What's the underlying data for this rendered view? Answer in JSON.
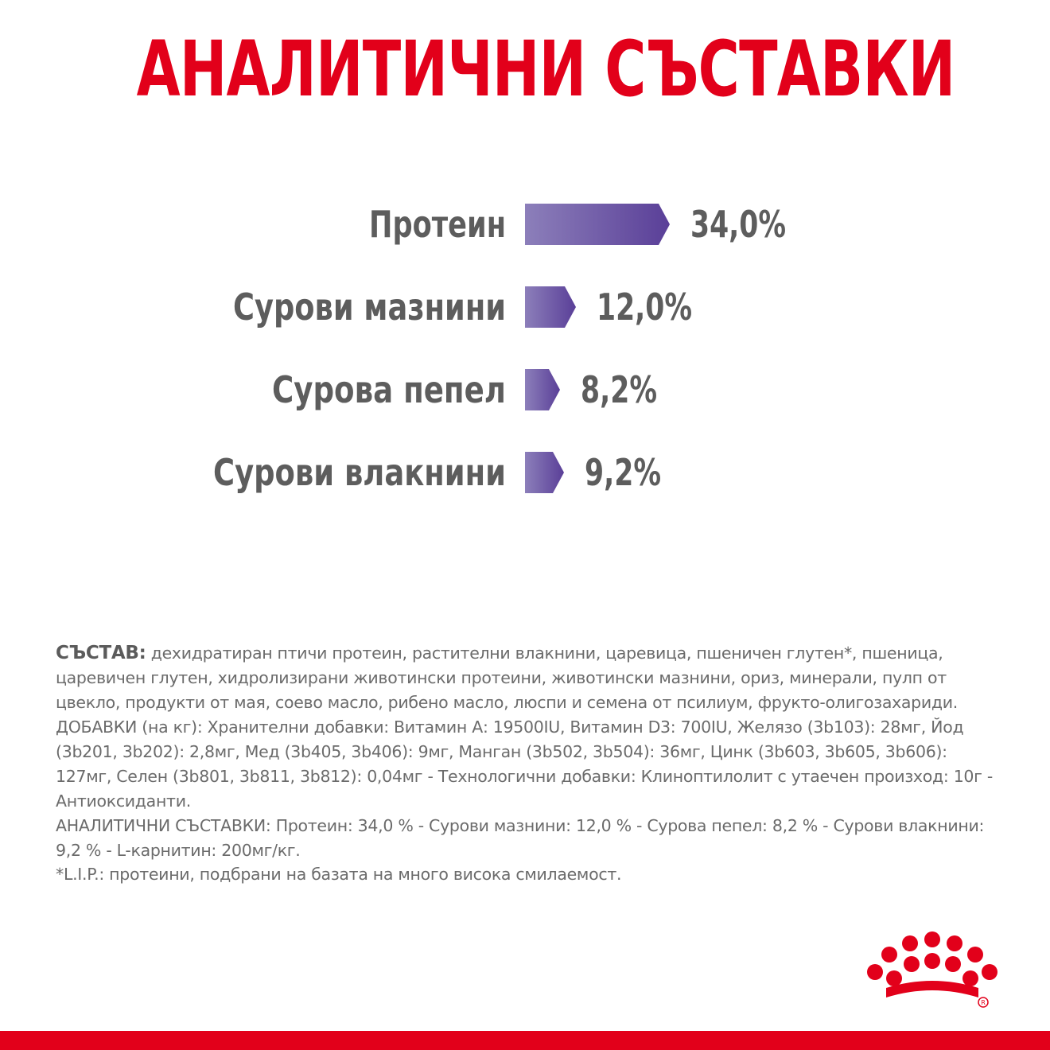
{
  "title": "АНАЛИТИЧНИ СЪСТАВКИ",
  "chart_data": {
    "type": "bar",
    "orientation": "horizontal",
    "categories": [
      "Протеин",
      "Сурови мазнини",
      "Сурова пепел",
      "Сурови влакнини"
    ],
    "values": [
      34.0,
      12.0,
      8.2,
      9.2
    ],
    "value_labels": [
      "34,0%",
      "12,0%",
      "8,2%",
      "9,2%"
    ],
    "title": "АНАЛИТИЧНИ СЪСТАВКИ",
    "xlabel": "",
    "ylabel": "",
    "grid": false,
    "colors": {
      "bar_start": "#8c7fba",
      "bar_end": "#5a3f98",
      "text": "#5d5d5d"
    }
  },
  "composition": {
    "label": "СЪСТАВ:",
    "text": "дехидратиран птичи протеин, растителни влакнини, царевица, пшеничен глутен*, пшеница, царевичен глутен, хидролизирани животински протеини, животински мазнини, ориз, минерали, пулп от цвекло, продукти от мая, соево масло, рибено масло, люспи и семена от псилиум, фрукто-олигозахариди.",
    "additives": "ДОБАВКИ (на кг): Хранителни добавки: Витамин А: 19500IU, Витамин D3: 700IU, Желязо (3b103): 28мг, Йод (3b201, 3b202): 2,8мг, Мед (3b405, 3b406): 9мг, Манган (3b502, 3b504): 36мг, Цинк (3b603, 3b605, 3b606): 127мг, Селен (3b801, 3b811, 3b812): 0,04мг - Технологични добавки: Клиноптилолит с утаечен произход: 10г - Антиоксиданти.",
    "analytical": "АНАЛИТИЧНИ СЪСТАВКИ: Протеин: 34,0 % - Сурови мазнини: 12,0 % - Сурова пепел: 8,2 % - Сурови влакнини: 9,2 % - L-карнитин: 200мг/кг."
  },
  "footnote": "*L.I.P.: протеини, подбрани на базата на много висока смилаемост.",
  "brand": {
    "color": "#e2001a",
    "logo_icon": "crown-logo-icon"
  }
}
